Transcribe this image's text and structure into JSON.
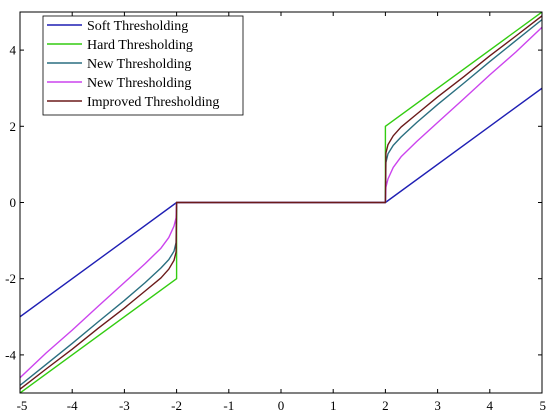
{
  "chart_data": {
    "type": "line",
    "title": "",
    "xlabel": "",
    "ylabel": "",
    "xlim": [
      -5,
      5
    ],
    "ylim": [
      -5,
      5
    ],
    "xticks": [
      -5,
      -4,
      -3,
      -2,
      -1,
      0,
      1,
      2,
      3,
      4,
      5
    ],
    "yticks": [
      -4,
      -2,
      0,
      2,
      4
    ],
    "threshold": 2,
    "grid": false,
    "legend_position": "top-left",
    "series": [
      {
        "name": "Soft Thresholding",
        "color": "#1f1fb4",
        "x": [
          -5,
          -2,
          -2,
          2,
          2,
          5
        ],
        "y": [
          -3,
          0,
          0,
          0,
          0,
          3
        ]
      },
      {
        "name": "Hard Thresholding",
        "color": "#33cc11",
        "x": [
          -5,
          -2,
          -2,
          2,
          2,
          5
        ],
        "y": [
          -5,
          -2,
          0,
          0,
          2,
          5
        ]
      },
      {
        "name": "New Thresholding",
        "color": "#2a6f80",
        "x": [
          -5,
          -4.5,
          -4,
          -3.5,
          -3,
          -2.6,
          -2.3,
          -2.15,
          -2.05,
          -2.01,
          -2,
          2,
          2.01,
          2.05,
          2.15,
          2.3,
          2.6,
          3,
          3.5,
          4,
          4.5,
          5
        ],
        "y": [
          -4.8,
          -4.25,
          -3.7,
          -3.13,
          -2.57,
          -2.1,
          -1.72,
          -1.5,
          -1.28,
          -1.05,
          0,
          0,
          1.05,
          1.28,
          1.5,
          1.72,
          2.1,
          2.57,
          3.13,
          3.7,
          4.25,
          4.8
        ]
      },
      {
        "name": "New Thresholding",
        "color": "#cc44ee",
        "x": [
          -5,
          -4.5,
          -4,
          -3.5,
          -3,
          -2.6,
          -2.3,
          -2.15,
          -2.05,
          -2.01,
          -2,
          2,
          2.01,
          2.05,
          2.15,
          2.3,
          2.6,
          3,
          3.5,
          4,
          4.5,
          5
        ],
        "y": [
          -4.6,
          -3.95,
          -3.35,
          -2.72,
          -2.1,
          -1.6,
          -1.2,
          -0.92,
          -0.62,
          -0.4,
          0,
          0,
          0.4,
          0.62,
          0.92,
          1.2,
          1.6,
          2.1,
          2.72,
          3.35,
          3.95,
          4.6
        ]
      },
      {
        "name": "Improved Thresholding",
        "color": "#6b1a1a",
        "x": [
          -5,
          -4.5,
          -4,
          -3.5,
          -3,
          -2.6,
          -2.3,
          -2.15,
          -2.05,
          -2.01,
          -2,
          2,
          2.01,
          2.05,
          2.15,
          2.3,
          2.6,
          3,
          3.5,
          4,
          4.5,
          5
        ],
        "y": [
          -4.9,
          -4.37,
          -3.85,
          -3.3,
          -2.77,
          -2.32,
          -1.98,
          -1.75,
          -1.52,
          -1.3,
          0,
          0,
          1.3,
          1.52,
          1.75,
          1.98,
          2.32,
          2.77,
          3.3,
          3.85,
          4.37,
          4.9
        ]
      }
    ]
  }
}
